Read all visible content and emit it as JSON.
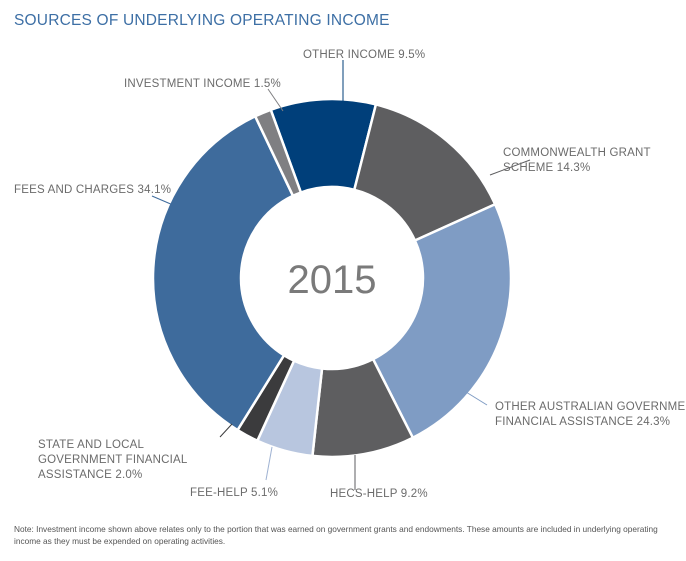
{
  "title": "SOURCES OF UNDERLYING OPERATING INCOME",
  "note": "Note: Investment income shown above relates only to the portion that was earned on government grants and endowments. These amounts are included in underlying operating income as they must be expended on operating activities.",
  "chart_data": {
    "type": "pie",
    "subtype": "donut",
    "center_label": "2015",
    "unit": "%",
    "slices": [
      {
        "name": "OTHER INCOME",
        "value": 9.5,
        "color": "#003f7a",
        "label_lines": [
          "OTHER INCOME 9.5%"
        ]
      },
      {
        "name": "COMMONWEALTH GRANT SCHEME",
        "value": 14.3,
        "color": "#5e5e60",
        "label_lines": [
          "COMMONWEALTH GRANT",
          "SCHEME 14.3%"
        ]
      },
      {
        "name": "OTHER AUSTRALIAN GOVERNMENT FINANCIAL ASSISTANCE",
        "value": 24.3,
        "color": "#7f9cc4",
        "label_lines": [
          "OTHER AUSTRALIAN GOVERNMENT",
          "FINANCIAL ASSISTANCE 24.3%"
        ]
      },
      {
        "name": "HECS-HELP",
        "value": 9.2,
        "color": "#5e5e60",
        "label_lines": [
          "HECS-HELP 9.2%"
        ]
      },
      {
        "name": "FEE-HELP",
        "value": 5.1,
        "color": "#b8c6df",
        "label_lines": [
          "FEE-HELP 5.1%"
        ]
      },
      {
        "name": "STATE AND LOCAL GOVERNMENT FINANCIAL ASSISTANCE",
        "value": 2.0,
        "color": "#3b3b3d",
        "label_lines": [
          "STATE AND LOCAL",
          "GOVERNMENT FINANCIAL",
          "ASSISTANCE 2.0%"
        ]
      },
      {
        "name": "FEES AND CHARGES",
        "value": 34.1,
        "color": "#3e6b9c",
        "label_lines": [
          "FEES AND CHARGES 34.1%"
        ]
      },
      {
        "name": "INVESTMENT INCOME",
        "value": 1.5,
        "color": "#7f7f82",
        "label_lines": [
          "INVESTMENT INCOME 1.5%"
        ]
      }
    ]
  }
}
